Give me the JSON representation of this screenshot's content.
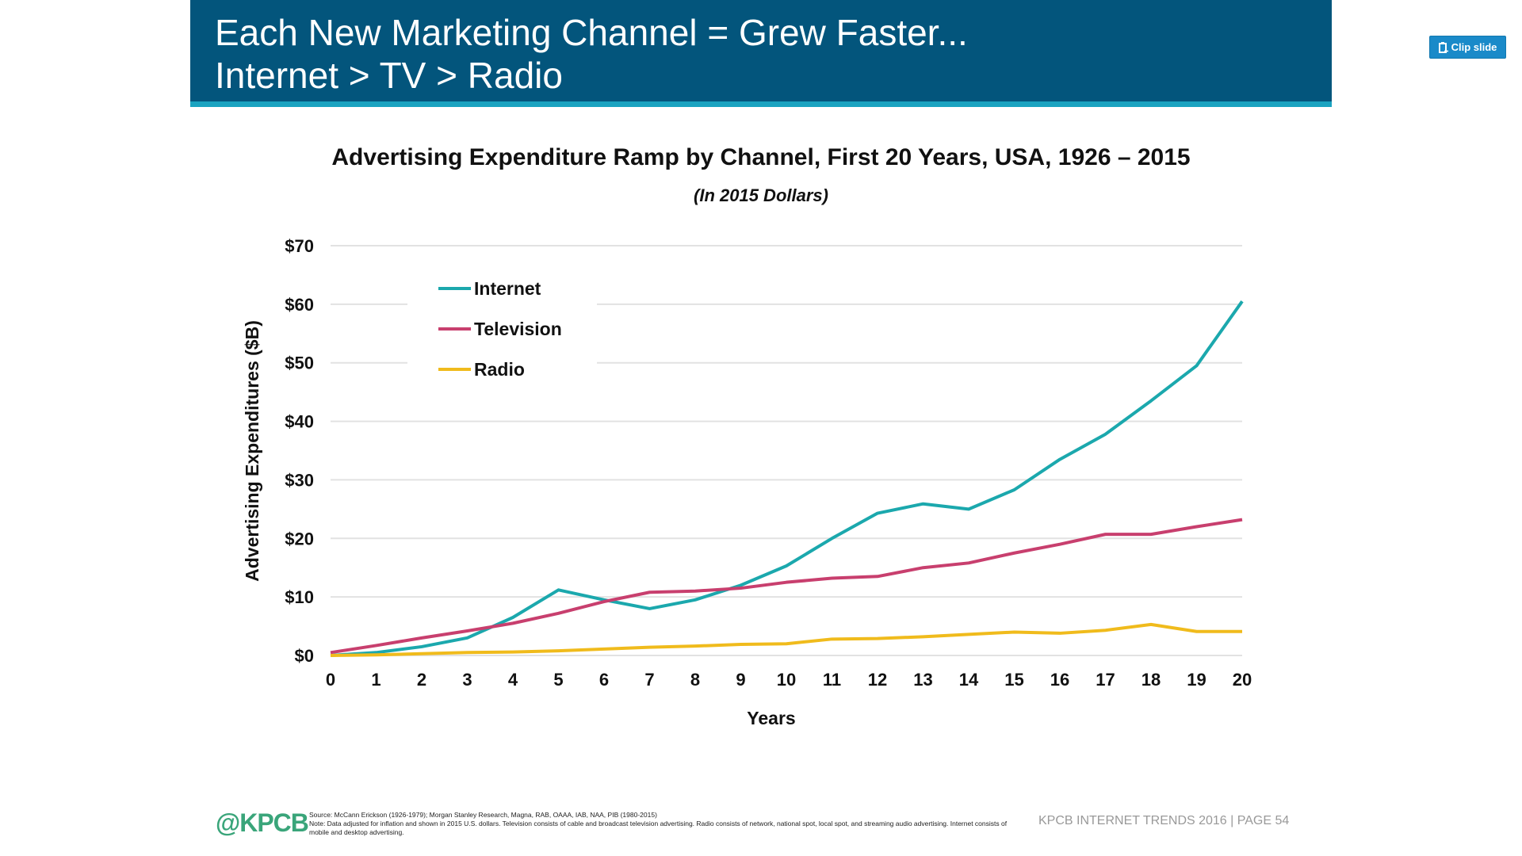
{
  "header": {
    "line1": "Each New Marketing Channel = Grew Faster...",
    "line2": "Internet > TV > Radio"
  },
  "clip_button": {
    "label": "Clip slide",
    "icon": "clipboard-plus-icon"
  },
  "colors": {
    "header_bg": "#03557c",
    "accent_bar": "#1aa3c0",
    "internet": "#1ba8ad",
    "television": "#c83f6e",
    "radio": "#f0bb1c"
  },
  "chart_data": {
    "type": "line",
    "title": "Advertising Expenditure Ramp by Channel, First 20 Years, USA, 1926 – 2015",
    "subtitle": "(In 2015 Dollars)",
    "xlabel": "Years",
    "ylabel": "Advertising Expenditures ($B)",
    "x": [
      0,
      1,
      2,
      3,
      4,
      5,
      6,
      7,
      8,
      9,
      10,
      11,
      12,
      13,
      14,
      15,
      16,
      17,
      18,
      19,
      20
    ],
    "xticks": [
      "0",
      "1",
      "2",
      "3",
      "4",
      "5",
      "6",
      "7",
      "8",
      "9",
      "10",
      "11",
      "12",
      "13",
      "14",
      "15",
      "16",
      "17",
      "18",
      "19",
      "20"
    ],
    "yticks": [
      "$0",
      "$10",
      "$20",
      "$30",
      "$40",
      "$50",
      "$60",
      "$70"
    ],
    "ylim": [
      0,
      70
    ],
    "grid": true,
    "legend": "top-left",
    "series": [
      {
        "name": "Internet",
        "values": [
          0,
          0.5,
          1.5,
          3,
          6.5,
          11.2,
          9.5,
          8,
          9.5,
          12,
          15.3,
          20,
          24.3,
          25.9,
          25,
          28.3,
          33.5,
          37.8,
          43.5,
          49.5,
          60.5
        ]
      },
      {
        "name": "Television",
        "values": [
          0.5,
          1.7,
          3,
          4.2,
          5.5,
          7.2,
          9.2,
          10.8,
          11,
          11.5,
          12.5,
          13.2,
          13.5,
          15,
          15.8,
          17.5,
          19,
          20.7,
          20.7,
          22,
          23.2
        ]
      },
      {
        "name": "Radio",
        "values": [
          0,
          0.1,
          0.3,
          0.5,
          0.6,
          0.8,
          1.1,
          1.4,
          1.6,
          1.9,
          2,
          2.8,
          2.9,
          3.2,
          3.6,
          4,
          3.8,
          4.3,
          5.3,
          4.1,
          4.1
        ]
      }
    ]
  },
  "footer": {
    "logo": "@KPCB",
    "source": "Source: McCann Erickson (1926-1979); Morgan Stanley Research, Magna, RAB, OAAA, IAB, NAA, PIB (1980-2015)",
    "note": "Note: Data adjusted for inflation and shown in 2015 U.S. dollars. Television consists of cable and broadcast television advertising. Radio consists of network, national spot, local spot, and streaming audio advertising. Internet consists of mobile and desktop advertising.",
    "right": "KPCB INTERNET TRENDS 2016   |   PAGE 54"
  }
}
